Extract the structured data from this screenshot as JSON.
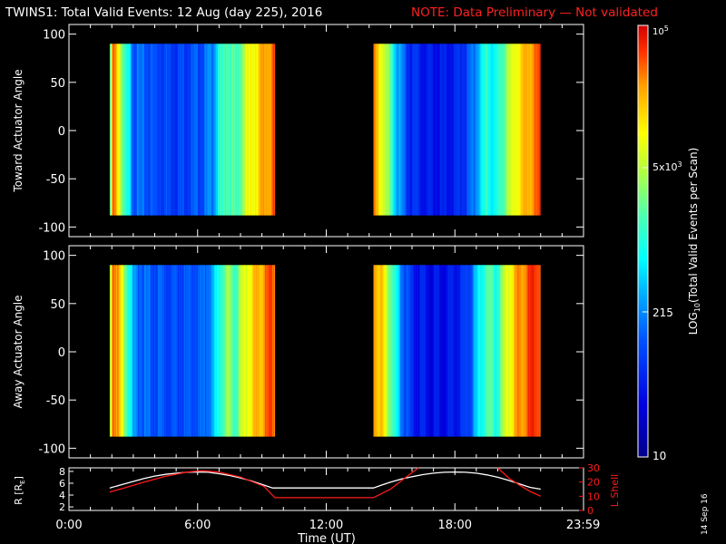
{
  "title": "TWINS1: Total Valid Events: 12 Aug (day 225), 2016",
  "note": "NOTE: Data Preliminary — Not validated",
  "stamp": "14 Sep 16",
  "colors": {
    "background": "#000000",
    "axes": "#ffffff",
    "note": "#ff2020",
    "lshell": "#ff1a1a",
    "radius": "#ffffff"
  },
  "chart_data": [
    {
      "type": "heatmap",
      "ylabel": "Toward Actuator Angle",
      "ylim": [
        -110,
        110
      ],
      "yticks": [
        100,
        50,
        0,
        -50,
        -100
      ],
      "xlim": [
        0,
        24
      ],
      "angle_range": [
        -88,
        90
      ],
      "blocks": [
        {
          "start_hr": 1.9,
          "end_hr": 9.6,
          "profile": [
            [
              1.9,
              0.5
            ],
            [
              2.05,
              0.9
            ],
            [
              2.3,
              0.78
            ],
            [
              2.6,
              0.5
            ],
            [
              2.85,
              0.42
            ],
            [
              3.0,
              0.3
            ],
            [
              4.0,
              0.26
            ],
            [
              5.0,
              0.24
            ],
            [
              6.2,
              0.27
            ],
            [
              6.7,
              0.34
            ],
            [
              7.0,
              0.48
            ],
            [
              7.4,
              0.58
            ],
            [
              7.8,
              0.52
            ],
            [
              8.2,
              0.68
            ],
            [
              8.7,
              0.78
            ],
            [
              9.2,
              0.86
            ],
            [
              9.6,
              0.9
            ]
          ]
        },
        {
          "start_hr": 14.2,
          "end_hr": 22.0,
          "profile": [
            [
              14.2,
              0.86
            ],
            [
              14.6,
              0.74
            ],
            [
              14.9,
              0.6
            ],
            [
              15.2,
              0.44
            ],
            [
              15.6,
              0.28
            ],
            [
              16.0,
              0.2
            ],
            [
              17.0,
              0.16
            ],
            [
              18.0,
              0.18
            ],
            [
              18.7,
              0.26
            ],
            [
              19.1,
              0.4
            ],
            [
              19.5,
              0.52
            ],
            [
              19.9,
              0.44
            ],
            [
              20.4,
              0.62
            ],
            [
              20.9,
              0.76
            ],
            [
              21.4,
              0.84
            ],
            [
              22.0,
              0.9
            ]
          ]
        }
      ]
    },
    {
      "type": "heatmap",
      "ylabel": "Away Actuator Angle",
      "ylim": [
        -110,
        110
      ],
      "yticks": [
        100,
        50,
        0,
        -50,
        -100
      ],
      "xlim": [
        0,
        24
      ],
      "angle_range": [
        -88,
        90
      ],
      "blocks": [
        {
          "start_hr": 1.9,
          "end_hr": 9.6,
          "profile": [
            [
              1.9,
              0.6
            ],
            [
              2.05,
              0.95
            ],
            [
              2.3,
              0.84
            ],
            [
              2.6,
              0.62
            ],
            [
              2.85,
              0.5
            ],
            [
              3.0,
              0.32
            ],
            [
              4.0,
              0.27
            ],
            [
              5.0,
              0.25
            ],
            [
              6.2,
              0.28
            ],
            [
              6.7,
              0.36
            ],
            [
              7.0,
              0.5
            ],
            [
              7.4,
              0.62
            ],
            [
              7.8,
              0.56
            ],
            [
              8.2,
              0.72
            ],
            [
              8.7,
              0.82
            ],
            [
              9.2,
              0.88
            ],
            [
              9.6,
              0.92
            ]
          ]
        },
        {
          "start_hr": 14.2,
          "end_hr": 22.0,
          "profile": [
            [
              14.2,
              0.9
            ],
            [
              14.6,
              0.8
            ],
            [
              14.9,
              0.66
            ],
            [
              15.2,
              0.48
            ],
            [
              15.6,
              0.3
            ],
            [
              16.0,
              0.18
            ],
            [
              17.0,
              0.14
            ],
            [
              18.0,
              0.16
            ],
            [
              18.7,
              0.26
            ],
            [
              19.1,
              0.42
            ],
            [
              19.5,
              0.58
            ],
            [
              19.9,
              0.5
            ],
            [
              20.4,
              0.7
            ],
            [
              20.9,
              0.84
            ],
            [
              21.4,
              0.92
            ],
            [
              22.0,
              0.95
            ]
          ]
        }
      ]
    },
    {
      "type": "line",
      "ylabel_left": "R [R",
      "ylabel_left_sub": "E",
      "ylabel_left_end": "]",
      "ylabel_right": "L Shell",
      "xlabel": "Time (UT)",
      "xticks": [
        "0:00",
        "6:00",
        "12:00",
        "18:00",
        "23:59"
      ],
      "xtick_hours": [
        0,
        6,
        12,
        18,
        23.983
      ],
      "xlim": [
        0,
        24
      ],
      "ylim_left": [
        1.4,
        8.6
      ],
      "yticks_left": [
        2,
        4,
        6,
        8
      ],
      "ylim_right": [
        0,
        30
      ],
      "yticks_right": [
        0,
        10,
        20,
        30
      ],
      "series": [
        {
          "axis": "left",
          "x": [
            1.9,
            2.5,
            3,
            3.5,
            4,
            4.5,
            5,
            5.5,
            6,
            6.5,
            7,
            7.5,
            8,
            8.5,
            9,
            9.5,
            14.2,
            14.6,
            15,
            15.5,
            16,
            16.5,
            17,
            17.5,
            18,
            18.5,
            19,
            19.5,
            20,
            20.5,
            21,
            21.5,
            22
          ],
          "y": [
            5.2,
            5.8,
            6.3,
            6.8,
            7.2,
            7.5,
            7.7,
            7.85,
            7.9,
            7.85,
            7.6,
            7.3,
            6.9,
            6.4,
            5.8,
            5.2,
            5.2,
            5.7,
            6.2,
            6.7,
            7.1,
            7.45,
            7.7,
            7.85,
            7.9,
            7.85,
            7.7,
            7.4,
            7.0,
            6.5,
            5.9,
            5.3,
            5.0
          ]
        },
        {
          "axis": "right",
          "x": [
            1.9,
            2.5,
            3.5,
            4.5,
            5.5,
            6.2,
            7,
            8,
            9.1,
            9.6,
            14.2,
            15,
            15.6,
            16.3
          ],
          "y": [
            13,
            15.5,
            20,
            24,
            27,
            28,
            27,
            23.5,
            17,
            9,
            9,
            15,
            22,
            30
          ]
        },
        {
          "axis": "right",
          "x": [
            20.0,
            20.5,
            21,
            21.5,
            22
          ],
          "y": [
            30,
            23,
            18,
            13.5,
            10
          ]
        }
      ]
    }
  ],
  "colorbar": {
    "label_main": "LOG",
    "label_sub": "10",
    "label_rest": "(Total Valid Events per Scan)",
    "min_label": "10",
    "tick_215": "215",
    "tick_5k_base": "5x10",
    "tick_5k_exp": "3",
    "max_base": "10",
    "max_exp": "5"
  }
}
